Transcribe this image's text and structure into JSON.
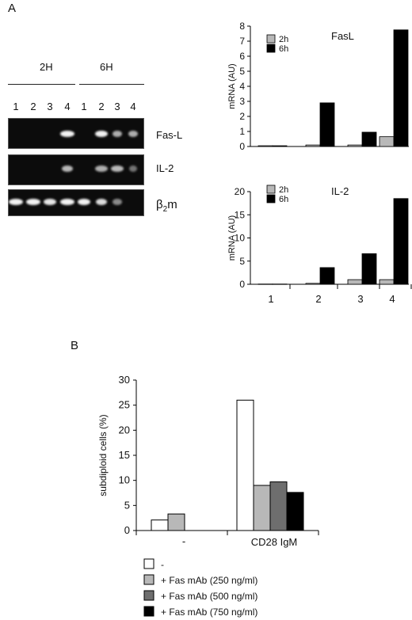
{
  "panel_a_label": "A",
  "panel_b_label": "B",
  "gel": {
    "groups": [
      "2H",
      "6H"
    ],
    "lanes": [
      "1",
      "2",
      "3",
      "4",
      "1",
      "2",
      "3",
      "4"
    ],
    "rows": [
      "Fas-L",
      "IL-2"
    ],
    "beta_label_main": "β",
    "beta_label_sub": "2",
    "beta_label_tail": "m"
  },
  "chart_data": [
    {
      "type": "bar",
      "title": "FasL",
      "ylabel": "mRNA (AU)",
      "ylim": [
        0,
        8
      ],
      "yticks": [
        0,
        1,
        2,
        3,
        4,
        5,
        6,
        7,
        8
      ],
      "categories": [
        "1",
        "2",
        "3",
        "4"
      ],
      "series": [
        {
          "name": "2h",
          "color": "#b8b8b8",
          "values": [
            0.05,
            0.1,
            0.1,
            0.65
          ]
        },
        {
          "name": "6h",
          "color": "#000000",
          "values": [
            0.05,
            2.9,
            0.95,
            7.75
          ]
        }
      ],
      "legend": "top-left"
    },
    {
      "type": "bar",
      "title": "IL-2",
      "ylabel": "mRNA (AU)",
      "ylim": [
        0,
        20
      ],
      "yticks": [
        0,
        5,
        10,
        15,
        20
      ],
      "categories": [
        "1",
        "2",
        "3",
        "4"
      ],
      "series": [
        {
          "name": "2h",
          "color": "#b8b8b8",
          "values": [
            0.05,
            0.2,
            1.0,
            1.0
          ]
        },
        {
          "name": "6h",
          "color": "#000000",
          "values": [
            0.05,
            3.6,
            6.6,
            18.5
          ]
        }
      ],
      "legend": "top-left"
    },
    {
      "type": "bar",
      "ylabel": "subdiploid cells (%)",
      "ylim": [
        0,
        30
      ],
      "yticks": [
        0,
        5,
        10,
        15,
        20,
        25,
        30
      ],
      "categories": [
        "-",
        "CD28 IgM"
      ],
      "series": [
        {
          "name": "-",
          "color": "#ffffff",
          "values": [
            2.1,
            26.0
          ]
        },
        {
          "name": "+ Fas mAb (250 ng/ml)",
          "color": "#b8b8b8",
          "values": [
            3.3,
            9.0
          ]
        },
        {
          "name": "+ Fas mAb (500 ng/ml)",
          "color": "#6e6e6e",
          "values": [
            null,
            9.7
          ]
        },
        {
          "name": "+ Fas mAb (750 ng/ml)",
          "color": "#000000",
          "values": [
            null,
            7.6
          ]
        }
      ],
      "legend": "bottom"
    }
  ]
}
